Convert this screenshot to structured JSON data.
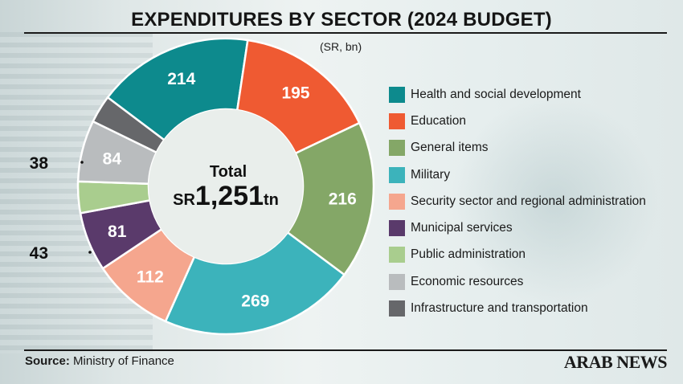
{
  "title": "EXPENDITURES BY SECTOR (2024 BUDGET)",
  "unit_note": "(SR, bn)",
  "center": {
    "total_label": "Total",
    "currency": "SR",
    "amount": "1,251",
    "amount_unit": "tn"
  },
  "source": {
    "label": "Source:",
    "text": " Ministry of Finance"
  },
  "brand": "ARAB NEWS",
  "chart_data": {
    "type": "pie",
    "subtype": "donut",
    "title": "EXPENDITURES BY SECTOR (2024 BUDGET)",
    "unit": "SR, bn",
    "total_text": "SR1,251tn",
    "series": [
      {
        "name": "Health and social development",
        "value": 214,
        "color": "#0d8a8d",
        "label_inside": true
      },
      {
        "name": "Education",
        "value": 195,
        "color": "#ef5a32",
        "label_inside": true
      },
      {
        "name": "General items",
        "value": 216,
        "color": "#84a767",
        "label_inside": true
      },
      {
        "name": "Military",
        "value": 269,
        "color": "#3cb3bb",
        "label_inside": true
      },
      {
        "name": "Security sector and regional administration",
        "value": 112,
        "color": "#f5a68e",
        "label_inside": true
      },
      {
        "name": "Municipal services",
        "value": 81,
        "color": "#5a3a6b",
        "label_inside": true
      },
      {
        "name": "Public administration",
        "value": 43,
        "color": "#a9cd8e",
        "label_inside": false
      },
      {
        "name": "Economic resources",
        "value": 84,
        "color": "#b9bcbe",
        "label_inside": true
      },
      {
        "name": "Infrastructure and transportation",
        "value": 38,
        "color": "#66676a",
        "label_inside": false
      }
    ],
    "legend_position": "right"
  }
}
